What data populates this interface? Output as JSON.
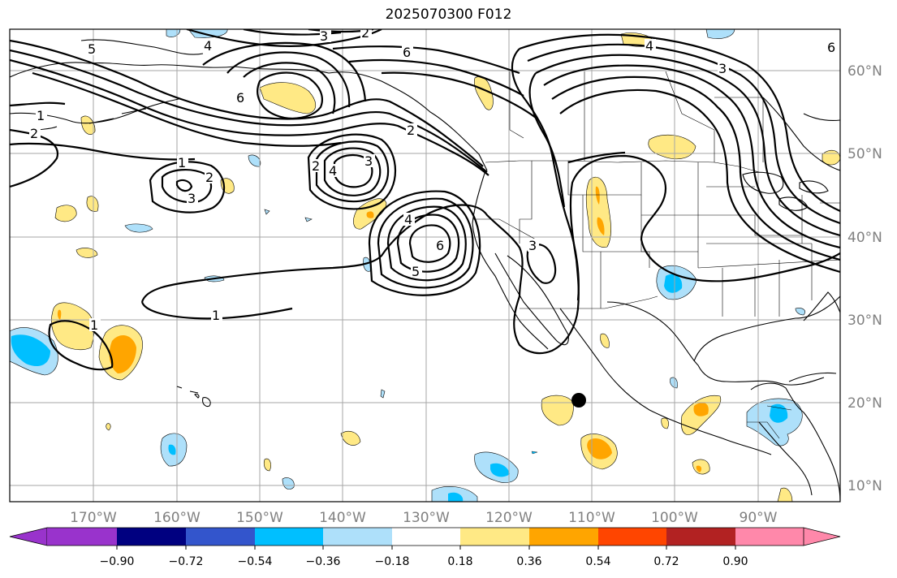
{
  "title": "2025070300 F012",
  "map": {
    "lon_labels": [
      "170°W",
      "160°W",
      "150°W",
      "140°W",
      "130°W",
      "120°W",
      "110°W",
      "100°W",
      "90°W"
    ],
    "lat_labels": [
      "60°N",
      "50°N",
      "40°N",
      "30°N",
      "20°N",
      "10°N"
    ],
    "label_color": "#808080",
    "grid_color": "#999999",
    "contour_labels": [
      "5",
      "4",
      "3",
      "2",
      "6",
      "1",
      "2",
      "6",
      "1",
      "2",
      "3",
      "1",
      "2",
      "4",
      "3",
      "4",
      "6",
      "5",
      "3",
      "1",
      "6",
      "3",
      "2",
      "4"
    ]
  },
  "colorbar": {
    "ticks": [
      "−0.90",
      "−0.72",
      "−0.54",
      "−0.36",
      "−0.18",
      "0.18",
      "0.36",
      "0.54",
      "0.72",
      "0.90"
    ],
    "colors": [
      "#9933cc",
      "#000080",
      "#3355cc",
      "#00bfff",
      "#aee0fa",
      "#ffffff",
      "#ffe985",
      "#ffa500",
      "#ff4500",
      "#b22222",
      "#ff88aa"
    ]
  }
}
